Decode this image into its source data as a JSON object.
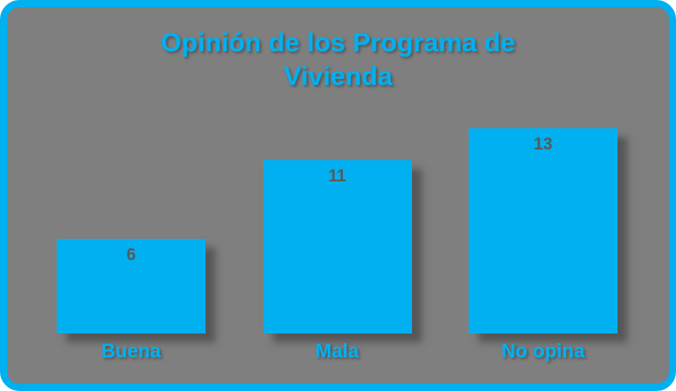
{
  "chart_data": {
    "type": "bar",
    "title": "Opinión de los Programa de Vivienda",
    "categories": [
      "Buena",
      "Mala",
      "No opina"
    ],
    "values": [
      6,
      11,
      13
    ],
    "xlabel": "",
    "ylabel": "",
    "ylim": [
      0,
      14
    ],
    "grid": false,
    "legend": "none",
    "data_labels_position": "inside-end"
  },
  "colors": {
    "accent": "#00b0f0",
    "background": "#7f7f7f",
    "value_label": "#595959"
  }
}
